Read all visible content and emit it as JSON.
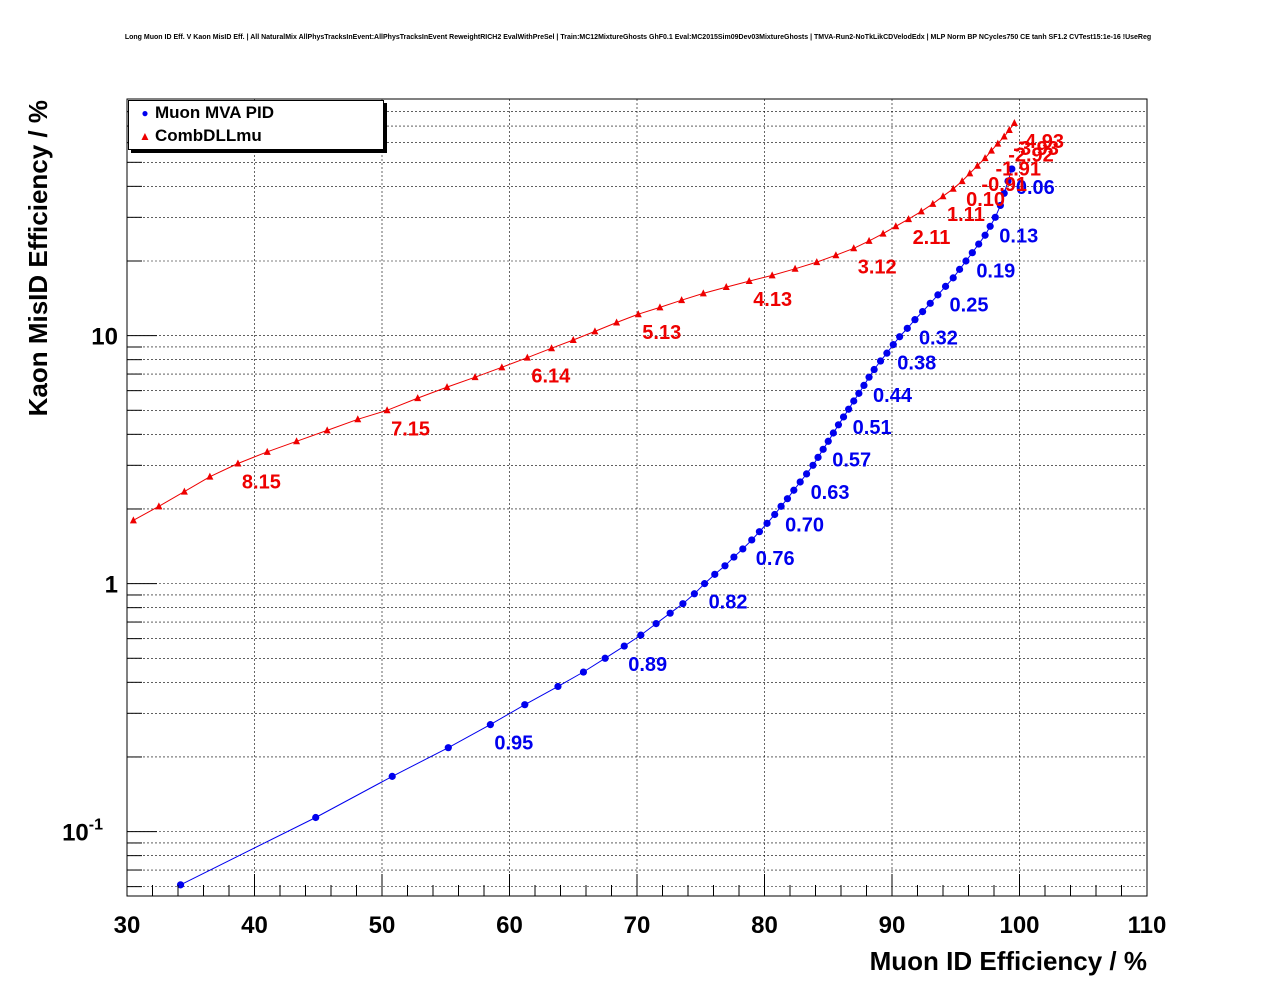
{
  "title": "Long Muon ID Eff. V Kaon MisID Eff. | All NaturalMix AllPhysTracksInEvent:AllPhysTracksInEvent ReweightRICH2 EvalWithPreSel | Train:MC12MixtureGhosts GhF0.1 Eval:MC2015Sim09Dev03MixtureGhosts | TMVA-Run2-NoTkLikCDVelodEdx | MLP Norm BP NCycles750 CE tanh SF1.2 CVTest15:1e-16 !UseReg",
  "colors": {
    "mva": "#0000ee",
    "dll": "#ee0000",
    "axis": "#000000"
  },
  "chart_data": {
    "type": "scatter",
    "xlabel": "Muon ID Efficiency / %",
    "ylabel": "Kaon MisID Efficiency / %",
    "xlim": [
      30,
      110
    ],
    "ylim": [
      0.055,
      90
    ],
    "yscale": "log",
    "grid": true,
    "legend_position": "top-left",
    "x_ticks": [
      "30",
      "40",
      "50",
      "60",
      "70",
      "80",
      "90",
      "100",
      "110"
    ],
    "y_ticks": [
      {
        "value": 0.1,
        "base": "10",
        "exp": "-1"
      },
      {
        "value": 1,
        "base": "1",
        "exp": ""
      },
      {
        "value": 10,
        "base": "10",
        "exp": ""
      }
    ],
    "series": [
      {
        "name": "Muon MVA PID",
        "marker": "circle",
        "points": [
          [
            34.2,
            0.061
          ],
          [
            44.8,
            0.114
          ],
          [
            50.8,
            0.167
          ],
          [
            55.2,
            0.218
          ],
          [
            58.5,
            0.27
          ],
          [
            61.2,
            0.325
          ],
          [
            63.8,
            0.385
          ],
          [
            65.8,
            0.44
          ],
          [
            67.5,
            0.5
          ],
          [
            69.0,
            0.56
          ],
          [
            70.3,
            0.62
          ],
          [
            71.5,
            0.69
          ],
          [
            72.6,
            0.76
          ],
          [
            73.6,
            0.83
          ],
          [
            74.5,
            0.91
          ],
          [
            75.3,
            1.0
          ],
          [
            76.1,
            1.09
          ],
          [
            76.9,
            1.18
          ],
          [
            77.6,
            1.28
          ],
          [
            78.3,
            1.38
          ],
          [
            79.0,
            1.5
          ],
          [
            79.6,
            1.62
          ],
          [
            80.2,
            1.75
          ],
          [
            80.8,
            1.9
          ],
          [
            81.3,
            2.05
          ],
          [
            81.8,
            2.2
          ],
          [
            82.3,
            2.38
          ],
          [
            82.8,
            2.57
          ],
          [
            83.3,
            2.77
          ],
          [
            83.8,
            3.0
          ],
          [
            84.2,
            3.23
          ],
          [
            84.6,
            3.48
          ],
          [
            85.0,
            3.75
          ],
          [
            85.4,
            4.05
          ],
          [
            85.8,
            4.37
          ],
          [
            86.2,
            4.7
          ],
          [
            86.6,
            5.05
          ],
          [
            87.0,
            5.45
          ],
          [
            87.4,
            5.85
          ],
          [
            87.8,
            6.3
          ],
          [
            88.2,
            6.8
          ],
          [
            88.6,
            7.3
          ],
          [
            89.1,
            7.9
          ],
          [
            89.6,
            8.5
          ],
          [
            90.1,
            9.2
          ],
          [
            90.6,
            9.9
          ],
          [
            91.2,
            10.7
          ],
          [
            91.8,
            11.6
          ],
          [
            92.4,
            12.5
          ],
          [
            93.0,
            13.5
          ],
          [
            93.6,
            14.6
          ],
          [
            94.2,
            15.8
          ],
          [
            94.8,
            17.1
          ],
          [
            95.3,
            18.5
          ],
          [
            95.8,
            20.0
          ],
          [
            96.3,
            21.6
          ],
          [
            96.8,
            23.4
          ],
          [
            97.3,
            25.4
          ],
          [
            97.7,
            27.6
          ],
          [
            98.1,
            30.0
          ],
          [
            98.5,
            33.5
          ],
          [
            98.8,
            37.5
          ],
          [
            99.1,
            42.0
          ],
          [
            99.4,
            47.0
          ]
        ],
        "labels": [
          {
            "text": "0.95",
            "x": 58.5,
            "y": 0.27
          },
          {
            "text": "0.89",
            "x": 69.0,
            "y": 0.56
          },
          {
            "text": "0.82",
            "x": 75.3,
            "y": 1.0
          },
          {
            "text": "0.76",
            "x": 79.0,
            "y": 1.5
          },
          {
            "text": "0.70",
            "x": 81.3,
            "y": 2.05
          },
          {
            "text": "0.63",
            "x": 83.3,
            "y": 2.77
          },
          {
            "text": "0.57",
            "x": 85.0,
            "y": 3.75
          },
          {
            "text": "0.51",
            "x": 86.6,
            "y": 5.05
          },
          {
            "text": "0.44",
            "x": 88.2,
            "y": 6.8
          },
          {
            "text": "0.38",
            "x": 90.1,
            "y": 9.2
          },
          {
            "text": "0.32",
            "x": 91.8,
            "y": 11.6
          },
          {
            "text": "0.25",
            "x": 94.2,
            "y": 15.8
          },
          {
            "text": "0.19",
            "x": 96.3,
            "y": 21.6
          },
          {
            "text": "0.13",
            "x": 98.1,
            "y": 30.0
          },
          {
            "text": "0.06",
            "x": 99.4,
            "y": 47.0
          }
        ]
      },
      {
        "name": "CombDLLmu",
        "marker": "triangle",
        "points": [
          [
            30.5,
            1.8
          ],
          [
            32.5,
            2.05
          ],
          [
            34.5,
            2.35
          ],
          [
            36.5,
            2.7
          ],
          [
            38.7,
            3.05
          ],
          [
            41.0,
            3.4
          ],
          [
            43.3,
            3.75
          ],
          [
            45.7,
            4.15
          ],
          [
            48.1,
            4.6
          ],
          [
            50.4,
            5.0
          ],
          [
            52.8,
            5.6
          ],
          [
            55.1,
            6.2
          ],
          [
            57.3,
            6.8
          ],
          [
            59.4,
            7.45
          ],
          [
            61.4,
            8.15
          ],
          [
            63.3,
            8.9
          ],
          [
            65.0,
            9.6
          ],
          [
            66.7,
            10.4
          ],
          [
            68.4,
            11.3
          ],
          [
            70.1,
            12.2
          ],
          [
            71.8,
            13.0
          ],
          [
            73.5,
            13.9
          ],
          [
            75.2,
            14.8
          ],
          [
            77.0,
            15.7
          ],
          [
            78.8,
            16.6
          ],
          [
            80.6,
            17.5
          ],
          [
            82.4,
            18.6
          ],
          [
            84.1,
            19.8
          ],
          [
            85.6,
            21.1
          ],
          [
            87.0,
            22.5
          ],
          [
            88.2,
            24.1
          ],
          [
            89.3,
            25.8
          ],
          [
            90.3,
            27.6
          ],
          [
            91.3,
            29.5
          ],
          [
            92.3,
            31.7
          ],
          [
            93.2,
            34.0
          ],
          [
            94.0,
            36.5
          ],
          [
            94.8,
            39.1
          ],
          [
            95.5,
            42.0
          ],
          [
            96.1,
            45.1
          ],
          [
            96.7,
            48.4
          ],
          [
            97.3,
            52.0
          ],
          [
            97.8,
            55.7
          ],
          [
            98.3,
            59.5
          ],
          [
            98.8,
            63.5
          ],
          [
            99.2,
            67.5
          ],
          [
            99.6,
            72.0
          ]
        ],
        "labels": [
          {
            "text": "8.15",
            "x": 38.7,
            "y": 3.05
          },
          {
            "text": "7.15",
            "x": 50.4,
            "y": 5.0
          },
          {
            "text": "6.14",
            "x": 61.4,
            "y": 8.15
          },
          {
            "text": "5.13",
            "x": 70.1,
            "y": 12.2
          },
          {
            "text": "4.13",
            "x": 78.8,
            "y": 16.6
          },
          {
            "text": "3.12",
            "x": 87.0,
            "y": 22.5
          },
          {
            "text": "2.11",
            "x": 91.3,
            "y": 29.5
          },
          {
            "text": "1.11",
            "x": 94.0,
            "y": 36.5
          },
          {
            "text": "0.10",
            "x": 95.5,
            "y": 42.0
          },
          {
            "text": "-0.91",
            "x": 96.7,
            "y": 48.4
          },
          {
            "text": "-1.91",
            "x": 97.8,
            "y": 55.7
          },
          {
            "text": "-2.92",
            "x": 98.8,
            "y": 63.5
          },
          {
            "text": "-3.93",
            "x": 99.2,
            "y": 67.5
          },
          {
            "text": "-4.93",
            "x": 99.6,
            "y": 72.0
          }
        ]
      }
    ]
  }
}
